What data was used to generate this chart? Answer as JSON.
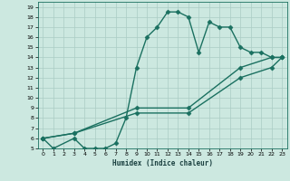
{
  "xlabel": "Humidex (Indice chaleur)",
  "background_color": "#cce8e0",
  "grid_color": "#aaccc4",
  "line_color": "#1a7060",
  "xlim": [
    -0.5,
    23.5
  ],
  "ylim": [
    5,
    19.5
  ],
  "xticks": [
    0,
    1,
    2,
    3,
    4,
    5,
    6,
    7,
    8,
    9,
    10,
    11,
    12,
    13,
    14,
    15,
    16,
    17,
    18,
    19,
    20,
    21,
    22,
    23
  ],
  "yticks": [
    5,
    6,
    7,
    8,
    9,
    10,
    11,
    12,
    13,
    14,
    15,
    16,
    17,
    18,
    19
  ],
  "curve1_x": [
    0,
    1,
    3,
    4,
    5,
    6,
    7,
    8,
    9,
    10,
    11,
    12,
    13,
    14,
    15,
    16,
    17,
    18,
    19,
    20,
    21,
    22,
    23
  ],
  "curve1_y": [
    6,
    5,
    6,
    5,
    5,
    5,
    5.5,
    8,
    13,
    16,
    17,
    18.5,
    18.5,
    18,
    14.5,
    17.5,
    17,
    17,
    15,
    14.5,
    14.5,
    14,
    14
  ],
  "curve2_x": [
    0,
    3,
    9,
    14,
    19,
    22,
    23
  ],
  "curve2_y": [
    6,
    6.5,
    9,
    9,
    13,
    14,
    14
  ],
  "curve3_x": [
    0,
    3,
    9,
    14,
    19,
    22,
    23
  ],
  "curve3_y": [
    6,
    6.5,
    8.5,
    8.5,
    12,
    13,
    14
  ],
  "marker": "D",
  "markersize": 2.5,
  "linewidth": 1.0
}
